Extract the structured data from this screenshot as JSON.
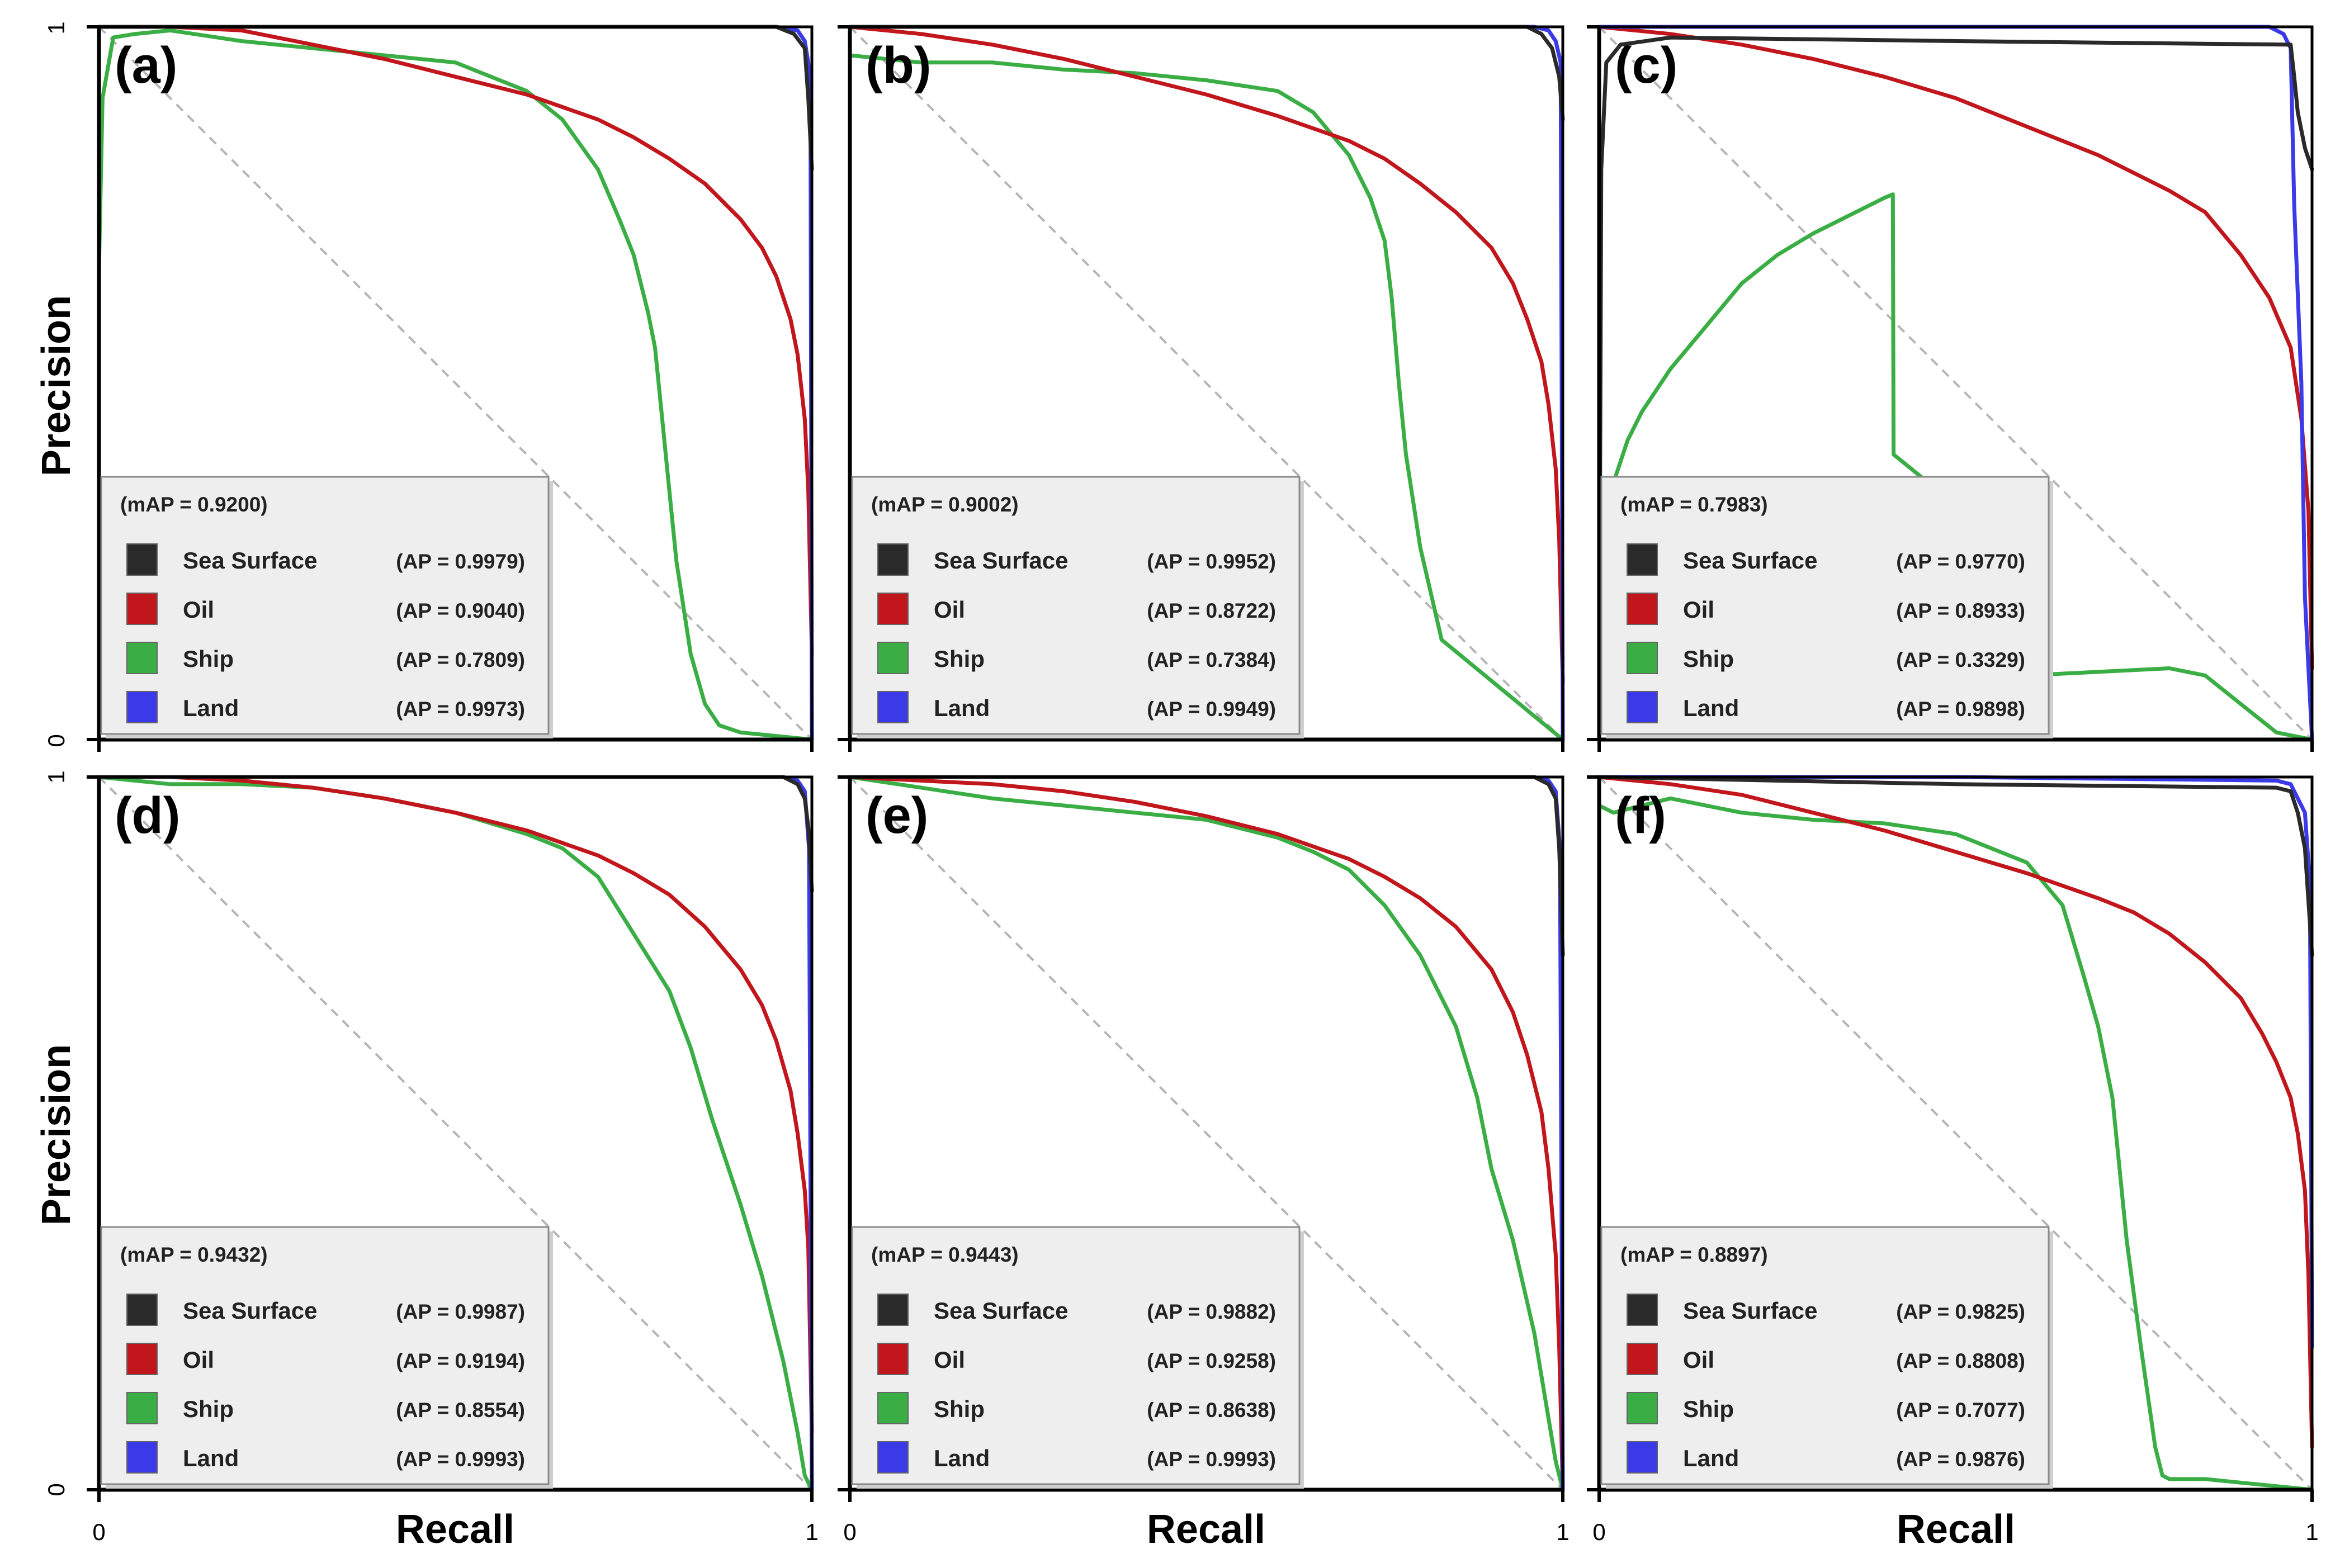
{
  "figure": {
    "xlabel": "Recall",
    "ylabel": "Precision",
    "x_tick_min": "0",
    "x_tick_max": "1",
    "y_tick_min": "0",
    "y_tick_max": "1"
  },
  "colors": {
    "Sea Surface": "#2a2a2a",
    "Oil": "#c0161c",
    "Ship": "#3aae45",
    "Land": "#3a3ae8",
    "diagonal": "#b5b5b5"
  },
  "chart_data": [
    {
      "type": "line",
      "panel": "(a)",
      "title": "(a)",
      "xlabel": "Recall",
      "ylabel": "Precision",
      "xlim": [
        0,
        1
      ],
      "ylim": [
        0,
        1
      ],
      "mAP_label": "(mAP = 0.9200)",
      "series": [
        {
          "name": "Sea Surface",
          "ap_label": "(AP = 0.9979)",
          "x": [
            0,
            0.05,
            0.5,
            0.95,
            0.975,
            0.99,
            0.995,
            1.0
          ],
          "y": [
            1,
            1,
            1,
            1,
            0.99,
            0.97,
            0.9,
            0.8
          ]
        },
        {
          "name": "Oil",
          "ap_label": "(AP = 0.9040)",
          "x": [
            0,
            0.1,
            0.2,
            0.3,
            0.4,
            0.5,
            0.6,
            0.7,
            0.75,
            0.8,
            0.85,
            0.9,
            0.93,
            0.95,
            0.97,
            0.98,
            0.99,
            0.995,
            1.0
          ],
          "y": [
            1,
            1,
            0.995,
            0.975,
            0.955,
            0.93,
            0.905,
            0.87,
            0.845,
            0.815,
            0.78,
            0.73,
            0.69,
            0.65,
            0.59,
            0.54,
            0.45,
            0.35,
            0.12
          ]
        },
        {
          "name": "Ship",
          "ap_label": "(AP = 0.7809)",
          "x": [
            0,
            0.005,
            0.02,
            0.05,
            0.1,
            0.2,
            0.3,
            0.4,
            0.5,
            0.6,
            0.65,
            0.7,
            0.73,
            0.75,
            0.77,
            0.78,
            0.79,
            0.8,
            0.81,
            0.83,
            0.85,
            0.87,
            0.9,
            0.95,
            0.98,
            1.0
          ],
          "y": [
            0.66,
            0.9,
            0.985,
            0.99,
            0.995,
            0.98,
            0.97,
            0.96,
            0.95,
            0.91,
            0.87,
            0.8,
            0.73,
            0.68,
            0.6,
            0.55,
            0.45,
            0.35,
            0.25,
            0.12,
            0.05,
            0.02,
            0.01,
            0.005,
            0.002,
            0
          ]
        },
        {
          "name": "Land",
          "ap_label": "(AP = 0.9973)",
          "x": [
            0,
            0.5,
            0.95,
            0.98,
            0.99,
            0.995,
            0.998,
            1.0
          ],
          "y": [
            1,
            1,
            1,
            0.995,
            0.98,
            0.95,
            0.9,
            0.0
          ]
        }
      ]
    },
    {
      "type": "line",
      "panel": "(b)",
      "title": "(b)",
      "xlabel": "Recall",
      "ylabel": "Precision",
      "xlim": [
        0,
        1
      ],
      "ylim": [
        0,
        1
      ],
      "mAP_label": "(mAP = 0.9002)",
      "series": [
        {
          "name": "Sea Surface",
          "ap_label": "(AP = 0.9952)",
          "x": [
            0,
            0.5,
            0.95,
            0.97,
            0.985,
            0.995,
            1.0
          ],
          "y": [
            1,
            1,
            1,
            0.99,
            0.97,
            0.93,
            0.87
          ]
        },
        {
          "name": "Oil",
          "ap_label": "(AP = 0.8722)",
          "x": [
            0,
            0.1,
            0.2,
            0.3,
            0.4,
            0.5,
            0.6,
            0.7,
            0.75,
            0.8,
            0.85,
            0.9,
            0.93,
            0.95,
            0.97,
            0.98,
            0.99,
            0.995,
            1.0
          ],
          "y": [
            1,
            0.99,
            0.975,
            0.955,
            0.93,
            0.905,
            0.875,
            0.84,
            0.815,
            0.78,
            0.74,
            0.69,
            0.64,
            0.59,
            0.53,
            0.47,
            0.38,
            0.28,
            0.08
          ]
        },
        {
          "name": "Ship",
          "ap_label": "(AP = 0.7384)",
          "x": [
            0,
            0.1,
            0.2,
            0.3,
            0.4,
            0.5,
            0.6,
            0.65,
            0.7,
            0.73,
            0.75,
            0.76,
            0.77,
            0.78,
            0.8,
            0.83,
            1.0
          ],
          "y": [
            0.96,
            0.95,
            0.95,
            0.94,
            0.935,
            0.925,
            0.91,
            0.88,
            0.82,
            0.76,
            0.7,
            0.62,
            0.5,
            0.4,
            0.27,
            0.14,
            0
          ]
        },
        {
          "name": "Land",
          "ap_label": "(AP = 0.9949)",
          "x": [
            0,
            0.5,
            0.96,
            0.98,
            0.99,
            0.997,
            1.0
          ],
          "y": [
            1,
            1,
            1,
            0.995,
            0.98,
            0.95,
            0.0
          ]
        }
      ]
    },
    {
      "type": "line",
      "panel": "(c)",
      "title": "(c)",
      "xlabel": "Recall",
      "ylabel": "Precision",
      "xlim": [
        0,
        1
      ],
      "ylim": [
        0,
        1
      ],
      "mAP_label": "(mAP = 0.7983)",
      "series": [
        {
          "name": "Sea Surface",
          "ap_label": "(AP = 0.9770)",
          "x": [
            0,
            0.003,
            0.01,
            0.03,
            0.1,
            0.5,
            0.97,
            0.975,
            0.98,
            0.99,
            1.0
          ],
          "y": [
            0,
            0.8,
            0.95,
            0.975,
            0.985,
            0.98,
            0.975,
            0.93,
            0.88,
            0.83,
            0.8
          ]
        },
        {
          "name": "Oil",
          "ap_label": "(AP = 0.8933)",
          "x": [
            0,
            0.1,
            0.2,
            0.3,
            0.4,
            0.5,
            0.6,
            0.7,
            0.8,
            0.85,
            0.9,
            0.94,
            0.97,
            0.985,
            0.995,
            1.0
          ],
          "y": [
            1,
            0.99,
            0.975,
            0.955,
            0.93,
            0.9,
            0.86,
            0.82,
            0.77,
            0.74,
            0.68,
            0.62,
            0.55,
            0.45,
            0.32,
            0.1
          ]
        },
        {
          "name": "Ship",
          "ap_label": "(AP = 0.3329)",
          "x": [
            0,
            0.02,
            0.04,
            0.06,
            0.08,
            0.1,
            0.15,
            0.2,
            0.25,
            0.3,
            0.35,
            0.4,
            0.412,
            0.413,
            0.45,
            0.5,
            0.55,
            0.58,
            0.6,
            0.7,
            0.8,
            0.85,
            0.9,
            0.95,
            1.0
          ],
          "y": [
            0.3,
            0.36,
            0.42,
            0.46,
            0.49,
            0.52,
            0.58,
            0.64,
            0.68,
            0.71,
            0.735,
            0.76,
            0.765,
            0.4,
            0.37,
            0.33,
            0.24,
            0.1,
            0.09,
            0.095,
            0.1,
            0.09,
            0.05,
            0.01,
            0
          ]
        },
        {
          "name": "Land",
          "ap_label": "(AP = 0.9898)",
          "x": [
            0,
            0.5,
            0.94,
            0.96,
            0.97,
            0.975,
            0.985,
            0.99,
            0.995,
            1.0
          ],
          "y": [
            1,
            1,
            1,
            0.99,
            0.97,
            0.75,
            0.5,
            0.2,
            0.1,
            0.0
          ]
        }
      ]
    },
    {
      "type": "line",
      "panel": "(d)",
      "title": "(d)",
      "xlabel": "Recall",
      "ylabel": "Precision",
      "xlim": [
        0,
        1
      ],
      "ylim": [
        0,
        1
      ],
      "mAP_label": "(mAP = 0.9432)",
      "series": [
        {
          "name": "Sea Surface",
          "ap_label": "(AP = 0.9987)",
          "x": [
            0,
            0.5,
            0.96,
            0.98,
            0.99,
            0.995,
            1.0
          ],
          "y": [
            1,
            1,
            1,
            0.99,
            0.97,
            0.93,
            0.84
          ]
        },
        {
          "name": "Oil",
          "ap_label": "(AP = 0.9194)",
          "x": [
            0,
            0.1,
            0.2,
            0.3,
            0.4,
            0.5,
            0.6,
            0.7,
            0.75,
            0.8,
            0.85,
            0.9,
            0.93,
            0.95,
            0.97,
            0.98,
            0.99,
            0.995,
            1.0
          ],
          "y": [
            1,
            1,
            0.995,
            0.985,
            0.97,
            0.95,
            0.925,
            0.89,
            0.865,
            0.835,
            0.79,
            0.73,
            0.68,
            0.63,
            0.56,
            0.5,
            0.42,
            0.34,
            0.08
          ]
        },
        {
          "name": "Ship",
          "ap_label": "(AP = 0.8554)",
          "x": [
            0,
            0.1,
            0.2,
            0.3,
            0.4,
            0.5,
            0.6,
            0.65,
            0.7,
            0.75,
            0.8,
            0.83,
            0.86,
            0.9,
            0.93,
            0.96,
            0.98,
            0.99,
            1.0
          ],
          "y": [
            1,
            0.99,
            0.99,
            0.985,
            0.97,
            0.95,
            0.92,
            0.9,
            0.86,
            0.78,
            0.7,
            0.62,
            0.52,
            0.4,
            0.3,
            0.18,
            0.08,
            0.02,
            0
          ]
        },
        {
          "name": "Land",
          "ap_label": "(AP = 0.9993)",
          "x": [
            0,
            0.5,
            0.96,
            0.98,
            0.99,
            0.996,
            1.0
          ],
          "y": [
            1,
            1,
            1,
            0.995,
            0.98,
            0.9,
            0.0
          ]
        }
      ]
    },
    {
      "type": "line",
      "panel": "(e)",
      "title": "(e)",
      "xlabel": "Recall",
      "ylabel": "Precision",
      "xlim": [
        0,
        1
      ],
      "ylim": [
        0,
        1
      ],
      "mAP_label": "(mAP = 0.9443)",
      "series": [
        {
          "name": "Sea Surface",
          "ap_label": "(AP = 0.9882)",
          "x": [
            0,
            0.5,
            0.96,
            0.98,
            0.99,
            0.995,
            1.0
          ],
          "y": [
            1,
            1,
            1,
            0.99,
            0.97,
            0.9,
            0.75
          ]
        },
        {
          "name": "Oil",
          "ap_label": "(AP = 0.9258)",
          "x": [
            0,
            0.1,
            0.2,
            0.3,
            0.4,
            0.5,
            0.6,
            0.7,
            0.75,
            0.8,
            0.85,
            0.9,
            0.93,
            0.95,
            0.97,
            0.98,
            0.99,
            0.995,
            1.0
          ],
          "y": [
            1,
            0.995,
            0.99,
            0.98,
            0.965,
            0.945,
            0.92,
            0.885,
            0.86,
            0.83,
            0.79,
            0.73,
            0.67,
            0.61,
            0.53,
            0.45,
            0.33,
            0.2,
            0
          ]
        },
        {
          "name": "Ship",
          "ap_label": "(AP = 0.8638)",
          "x": [
            0,
            0.1,
            0.2,
            0.3,
            0.4,
            0.5,
            0.6,
            0.65,
            0.7,
            0.75,
            0.8,
            0.85,
            0.88,
            0.9,
            0.93,
            0.96,
            0.98,
            0.99,
            1.0
          ],
          "y": [
            1,
            0.985,
            0.97,
            0.96,
            0.95,
            0.94,
            0.915,
            0.895,
            0.87,
            0.82,
            0.75,
            0.65,
            0.55,
            0.45,
            0.35,
            0.22,
            0.1,
            0.04,
            0
          ]
        },
        {
          "name": "Land",
          "ap_label": "(AP = 0.9993)",
          "x": [
            0,
            0.5,
            0.96,
            0.98,
            0.99,
            0.996,
            1.0
          ],
          "y": [
            1,
            1,
            1,
            0.995,
            0.98,
            0.9,
            0.0
          ]
        }
      ]
    },
    {
      "type": "line",
      "panel": "(f)",
      "title": "(f)",
      "xlabel": "Recall",
      "ylabel": "Precision",
      "xlim": [
        0,
        1
      ],
      "ylim": [
        0,
        1
      ],
      "mAP_label": "(mAP = 0.8897)",
      "series": [
        {
          "name": "Sea Surface",
          "ap_label": "(AP = 0.9825)",
          "x": [
            0,
            0.5,
            0.95,
            0.97,
            0.98,
            0.99,
            1.0
          ],
          "y": [
            1,
            0.99,
            0.985,
            0.98,
            0.95,
            0.9,
            0.75
          ]
        },
        {
          "name": "Oil",
          "ap_label": "(AP = 0.8808)",
          "x": [
            0,
            0.1,
            0.2,
            0.3,
            0.4,
            0.5,
            0.6,
            0.7,
            0.75,
            0.8,
            0.85,
            0.9,
            0.93,
            0.95,
            0.97,
            0.98,
            0.99,
            0.995,
            1.0
          ],
          "y": [
            1,
            0.99,
            0.975,
            0.95,
            0.925,
            0.895,
            0.865,
            0.83,
            0.81,
            0.78,
            0.74,
            0.69,
            0.64,
            0.6,
            0.55,
            0.5,
            0.42,
            0.3,
            0.06
          ]
        },
        {
          "name": "Ship",
          "ap_label": "(AP = 0.7077)",
          "x": [
            0,
            0.02,
            0.1,
            0.2,
            0.3,
            0.4,
            0.5,
            0.6,
            0.65,
            0.68,
            0.7,
            0.72,
            0.73,
            0.74,
            0.76,
            0.78,
            0.79,
            0.8,
            0.85,
            0.9,
            0.95,
            1.0
          ],
          "y": [
            0.96,
            0.95,
            0.97,
            0.95,
            0.94,
            0.935,
            0.92,
            0.88,
            0.82,
            0.72,
            0.65,
            0.55,
            0.45,
            0.35,
            0.2,
            0.06,
            0.02,
            0.015,
            0.015,
            0.01,
            0.005,
            0
          ]
        },
        {
          "name": "Land",
          "ap_label": "(AP = 0.9876)",
          "x": [
            0,
            0.5,
            0.95,
            0.97,
            0.98,
            0.99,
            0.997,
            1.0
          ],
          "y": [
            1,
            1,
            0.995,
            0.99,
            0.97,
            0.95,
            0.85,
            0.2
          ]
        }
      ]
    }
  ]
}
